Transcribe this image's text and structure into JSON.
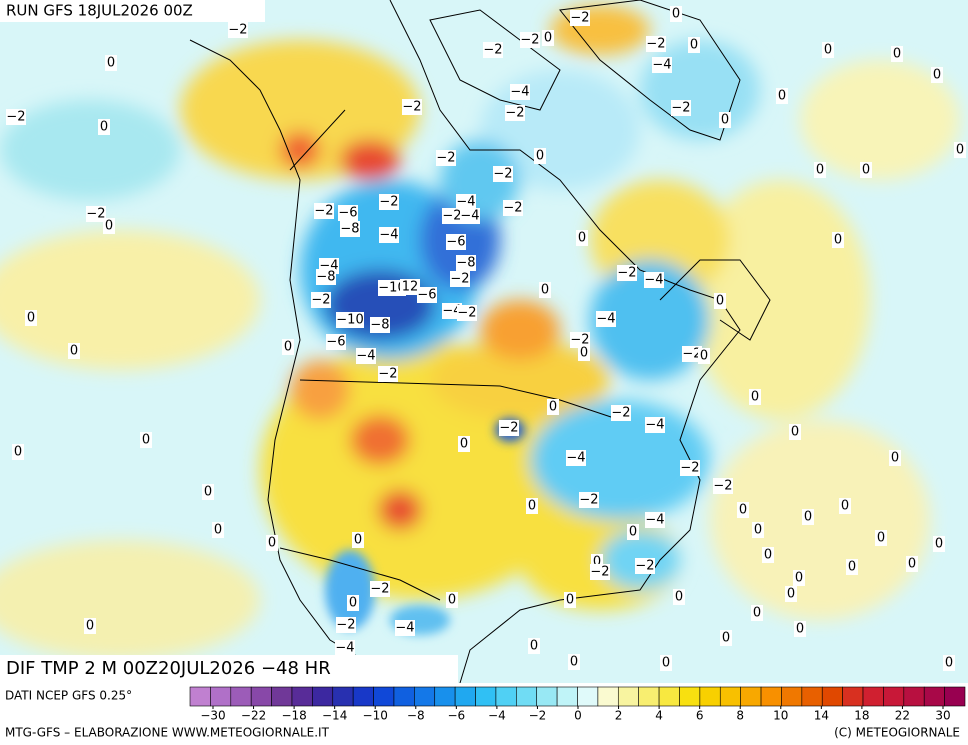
{
  "header": {
    "run": "RUN GFS 18JUL2026 00Z"
  },
  "map": {
    "field_label": "DIF TMP 2 M 00Z20JUL2026 −48 HR",
    "contour_labels": [
      "−2",
      "−2",
      "0",
      "−2",
      "−4",
      "0",
      "0",
      "0",
      "0",
      "−2",
      "0",
      "0",
      "−2",
      "−2",
      "0",
      "−4",
      "−2",
      "−2",
      "−2",
      "0",
      "0",
      "−2",
      "0",
      "−2",
      "−4",
      "−2",
      "−6",
      "−8",
      "−2",
      "−4",
      "−2",
      "−4",
      "−6",
      "−8",
      "−2",
      "−2",
      "0",
      "0",
      "0",
      "0",
      "0",
      "−4",
      "−8",
      "−2",
      "−10",
      "12",
      "−6",
      "−2",
      "−4",
      "−2",
      "0",
      "−2",
      "−4",
      "0",
      "0",
      "−10",
      "−8",
      "−4",
      "−6",
      "−2",
      "0",
      "0",
      "0",
      "−4",
      "−2",
      "−2",
      "0",
      "0",
      "−2",
      "0",
      "−4",
      "−2",
      "0",
      "0",
      "0",
      "0",
      "−4",
      "−2",
      "0",
      "−2",
      "0",
      "−2",
      "0",
      "0",
      "0",
      "−4",
      "0",
      "0",
      "0",
      "0",
      "0",
      "0",
      "0",
      "0",
      "0",
      "−2",
      "−2",
      "0",
      "0",
      "0",
      "−2",
      "0",
      "0",
      "0",
      "0",
      "0",
      "0",
      "0",
      "−2",
      "−4",
      "0",
      "0",
      "0",
      "0",
      "0",
      "−4",
      "0",
      "0",
      "0"
    ]
  },
  "legend": {
    "source": "DATI NCEP GFS 0.25°",
    "colors": [
      "#c080d0",
      "#b070c8",
      "#9c5cb8",
      "#8848a8",
      "#703898",
      "#582c98",
      "#3c28a0",
      "#2830b0",
      "#1838c8",
      "#1048d8",
      "#1060e0",
      "#1478e8",
      "#1890ec",
      "#20a8f0",
      "#30c0f4",
      "#50d0f4",
      "#70dcf4",
      "#98e8f4",
      "#c0f4f8",
      "#e0fafa",
      "#fafad0",
      "#f8f4a0",
      "#f8ee70",
      "#f8e840",
      "#f8e010",
      "#f8d000",
      "#f8c000",
      "#f8a800",
      "#f89000",
      "#f07800",
      "#e86000",
      "#e04800",
      "#d83020",
      "#d02030",
      "#c81838",
      "#b81040",
      "#a80848",
      "#980050"
    ],
    "ticks": [
      {
        "value": -30,
        "label": "−30"
      },
      {
        "value": -22,
        "label": "−22"
      },
      {
        "value": -18,
        "label": "−18"
      },
      {
        "value": -14,
        "label": "−14"
      },
      {
        "value": -10,
        "label": "−10"
      },
      {
        "value": -8,
        "label": "−8"
      },
      {
        "value": -6,
        "label": "−6"
      },
      {
        "value": -4,
        "label": "−4"
      },
      {
        "value": -2,
        "label": "−2"
      },
      0,
      2,
      4,
      6,
      8,
      10,
      14,
      18,
      22,
      30
    ]
  },
  "footer": {
    "credit": "MTG-GFS – ELABORAZIONE WWW.METEOGIORNALE.IT",
    "copyright": "(C) METEOGIORNALE"
  }
}
